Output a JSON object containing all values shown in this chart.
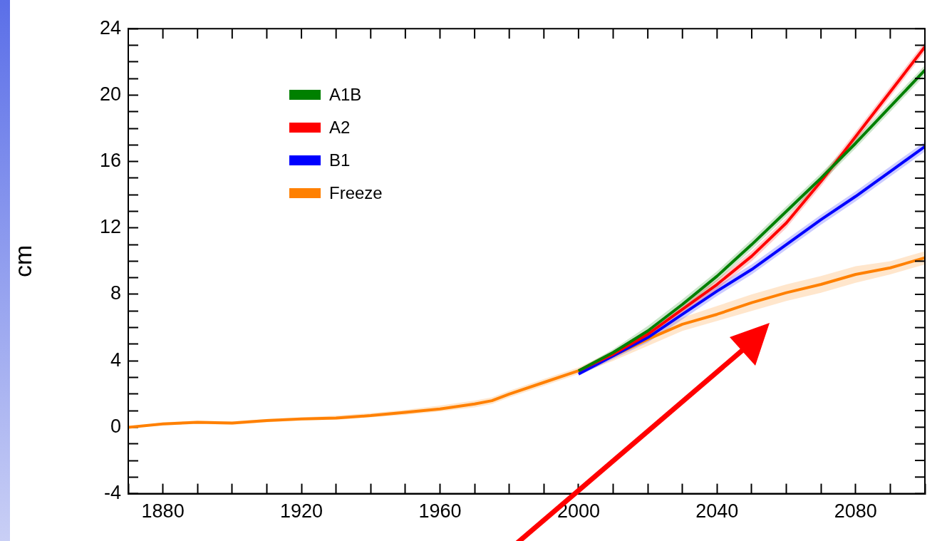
{
  "chart_data": {
    "type": "line",
    "ylabel": "cm",
    "xlim": [
      1870,
      2100
    ],
    "xticks": [
      {
        "value": 1870,
        "label": null
      },
      1880,
      {
        "value": 1890,
        "label": null
      },
      {
        "value": 1900,
        "label": null
      },
      {
        "value": 1910,
        "label": null
      },
      1920,
      {
        "value": 1930,
        "label": null
      },
      {
        "value": 1940,
        "label": null
      },
      {
        "value": 1950,
        "label": null
      },
      1960,
      {
        "value": 1970,
        "label": null
      },
      {
        "value": 1980,
        "label": null
      },
      {
        "value": 1990,
        "label": null
      },
      2000,
      {
        "value": 2010,
        "label": null
      },
      {
        "value": 2020,
        "label": null
      },
      {
        "value": 2030,
        "label": null
      },
      2040,
      {
        "value": 2050,
        "label": null
      },
      {
        "value": 2060,
        "label": null
      },
      {
        "value": 2070,
        "label": null
      },
      2080,
      {
        "value": 2090,
        "label": null
      },
      {
        "value": 2100,
        "label": null
      }
    ],
    "ylim": [
      -4,
      24
    ],
    "yticks": [
      -4,
      {
        "value": -3,
        "label": null
      },
      {
        "value": -2,
        "label": null
      },
      {
        "value": -1,
        "label": null
      },
      0,
      {
        "value": 1,
        "label": null
      },
      {
        "value": 2,
        "label": null
      },
      {
        "value": 3,
        "label": null
      },
      4,
      {
        "value": 5,
        "label": null
      },
      {
        "value": 6,
        "label": null
      },
      {
        "value": 7,
        "label": null
      },
      8,
      {
        "value": 9,
        "label": null
      },
      {
        "value": 10,
        "label": null
      },
      {
        "value": 11,
        "label": null
      },
      12,
      {
        "value": 13,
        "label": null
      },
      {
        "value": 14,
        "label": null
      },
      {
        "value": 15,
        "label": null
      },
      16,
      {
        "value": 17,
        "label": null
      },
      {
        "value": 18,
        "label": null
      },
      {
        "value": 19,
        "label": null
      },
      20,
      {
        "value": 21,
        "label": null
      },
      {
        "value": 22,
        "label": null
      },
      {
        "value": 23,
        "label": null
      },
      24
    ],
    "grid": false,
    "legend": "top left",
    "line_style": "solid",
    "marker": "none",
    "series": [
      {
        "name": "A1B",
        "color": "#008000",
        "x": [
          2000,
          2010,
          2020,
          2030,
          2040,
          2050,
          2060,
          2070,
          2080,
          2090,
          2100
        ],
        "values": [
          3.4,
          4.5,
          5.8,
          7.4,
          9.1,
          11.0,
          13.0,
          15.0,
          17.1,
          19.3,
          21.5
        ],
        "lower": [
          3.3,
          4.3,
          5.5,
          7.1,
          8.8,
          10.7,
          12.7,
          14.7,
          16.8,
          19.0,
          21.2
        ],
        "upper": [
          3.5,
          4.7,
          6.1,
          7.7,
          9.4,
          11.3,
          13.3,
          15.3,
          17.4,
          19.6,
          21.8
        ]
      },
      {
        "name": "A2",
        "color": "#ff0000",
        "x": [
          2000,
          2010,
          2020,
          2030,
          2040,
          2050,
          2060,
          2070,
          2080,
          2090,
          2100
        ],
        "values": [
          3.4,
          4.4,
          5.6,
          7.1,
          8.6,
          10.3,
          12.3,
          14.8,
          17.5,
          20.2,
          22.9
        ],
        "lower": [
          3.3,
          4.2,
          5.3,
          6.8,
          8.3,
          10.0,
          12.0,
          14.5,
          17.2,
          19.9,
          22.6
        ],
        "upper": [
          3.5,
          4.6,
          5.9,
          7.4,
          8.9,
          10.6,
          12.6,
          15.1,
          17.8,
          20.5,
          23.2
        ]
      },
      {
        "name": "B1",
        "color": "#0000ff",
        "x": [
          2000,
          2010,
          2020,
          2030,
          2040,
          2050,
          2060,
          2070,
          2080,
          2090,
          2100
        ],
        "values": [
          3.2,
          4.3,
          5.4,
          6.8,
          8.2,
          9.5,
          11.0,
          12.5,
          13.9,
          15.4,
          16.9
        ],
        "lower": [
          3.1,
          4.1,
          5.1,
          6.5,
          7.9,
          9.2,
          10.7,
          12.2,
          13.6,
          15.1,
          16.6
        ],
        "upper": [
          3.3,
          4.5,
          5.7,
          7.1,
          8.5,
          9.8,
          11.3,
          12.8,
          14.2,
          15.7,
          17.2
        ]
      },
      {
        "name": "Freeze",
        "color": "#ff8000",
        "x": [
          1870,
          1880,
          1890,
          1900,
          1910,
          1920,
          1930,
          1940,
          1950,
          1960,
          1970,
          1975,
          1980,
          1990,
          2000,
          2010,
          2020,
          2030,
          2040,
          2050,
          2060,
          2070,
          2080,
          2090,
          2100
        ],
        "values": [
          0,
          0.2,
          0.3,
          0.25,
          0.4,
          0.5,
          0.55,
          0.7,
          0.9,
          1.1,
          1.4,
          1.6,
          2.0,
          2.7,
          3.4,
          4.3,
          5.3,
          6.2,
          6.8,
          7.5,
          8.1,
          8.6,
          9.2,
          9.6,
          10.2
        ],
        "lower": [
          0,
          0.1,
          0.2,
          0.15,
          0.3,
          0.4,
          0.45,
          0.6,
          0.75,
          0.95,
          1.2,
          1.4,
          1.8,
          2.5,
          3.2,
          4.0,
          4.9,
          5.8,
          6.4,
          7.0,
          7.6,
          8.1,
          8.7,
          9.2,
          9.8
        ],
        "upper": [
          0,
          0.3,
          0.4,
          0.35,
          0.5,
          0.6,
          0.7,
          0.85,
          1.05,
          1.3,
          1.6,
          1.8,
          2.2,
          2.9,
          3.6,
          4.6,
          5.7,
          6.6,
          7.3,
          8.0,
          8.6,
          9.1,
          9.7,
          10.0,
          10.6
        ]
      }
    ]
  }
}
